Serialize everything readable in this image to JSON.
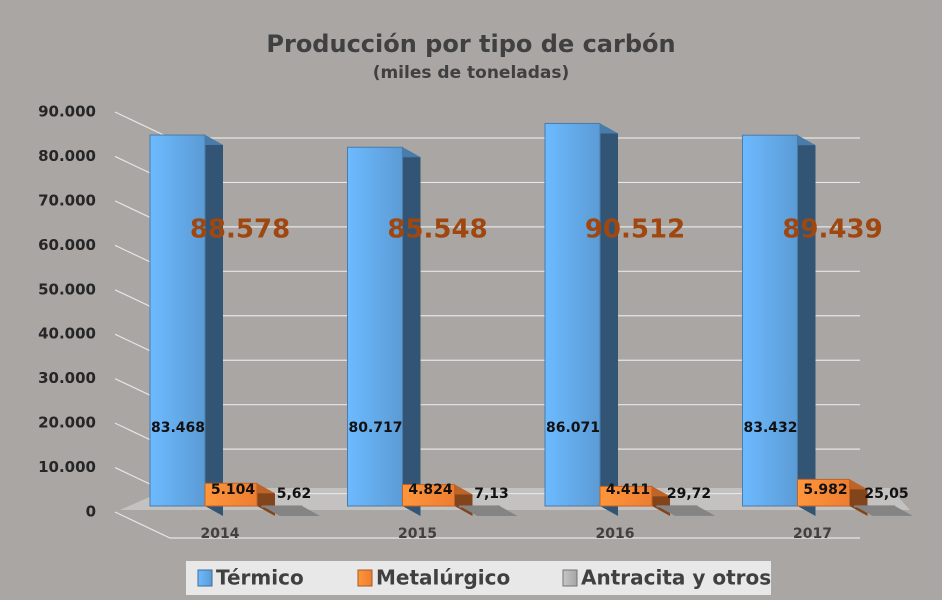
{
  "chart_data": {
    "type": "bar3d",
    "title": "Producción por tipo de carbón",
    "subtitle": "(miles de toneladas)",
    "categories": [
      "2014",
      "2015",
      "2016",
      "2017"
    ],
    "series": [
      {
        "name": "Térmico",
        "color": "#5b9bd5",
        "values": [
          83468,
          80717,
          86071,
          83432
        ],
        "value_labels": [
          "83.468",
          "80.717",
          "86.071",
          "83.432"
        ]
      },
      {
        "name": "Metalúrgico",
        "color": "#ed7d31",
        "values": [
          5104,
          4824,
          4411,
          5982
        ],
        "value_labels": [
          "5.104",
          "4.824",
          "4.411",
          "5.982"
        ]
      },
      {
        "name": "Antracita y otros",
        "color": "#a5a5a5",
        "values": [
          5.62,
          7.13,
          29.72,
          25.05
        ],
        "value_labels": [
          "5,62",
          "7,13",
          "29,72",
          "25,05"
        ]
      }
    ],
    "annotations": [
      "88.578",
      "85.548",
      "90.512",
      "89.439"
    ],
    "ylim": [
      0,
      90000
    ],
    "yticks": [
      0,
      {
        "value": 10000,
        "label": "10.000"
      },
      {
        "value": 20000,
        "label": "20.000"
      },
      {
        "value": 30000,
        "label": "30.000"
      },
      {
        "value": 40000,
        "label": "40.000"
      },
      {
        "value": 50000,
        "label": "50.000"
      },
      {
        "value": 60000,
        "label": "60.000"
      },
      {
        "value": 70000,
        "label": "70.000"
      },
      {
        "value": 80000,
        "label": "80.000"
      },
      {
        "value": 90000,
        "label": "90.000"
      }
    ],
    "grid": true,
    "legend": "bottom"
  }
}
